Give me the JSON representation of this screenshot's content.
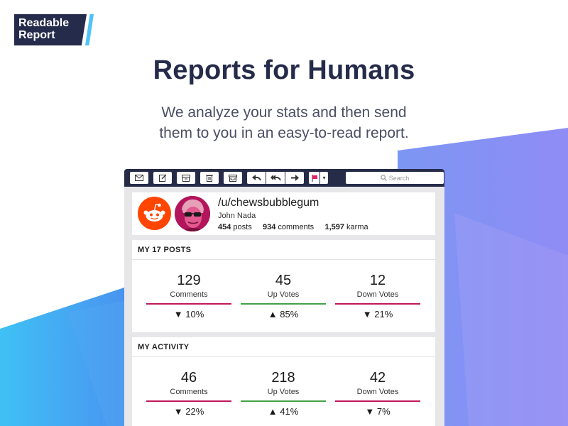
{
  "brand": {
    "line1": "Readable",
    "line2": "Report"
  },
  "hero": {
    "title": "Reports for Humans",
    "subtitle_line1": "We analyze your stats and then send",
    "subtitle_line2": "them to you in an easy-to-read report."
  },
  "toolbar": {
    "search_placeholder": "Search",
    "icons": [
      "envelope-icon",
      "compose-icon",
      "archive-icon",
      "trash-icon",
      "inbox-icon",
      "reply-icon",
      "reply-all-icon",
      "forward-icon",
      "flag-icon",
      "caret-down-icon"
    ]
  },
  "profile": {
    "username": "/u/chewsbubblegum",
    "real_name": "John Nada",
    "posts_count": "454",
    "posts_label": "posts",
    "comments_count": "934",
    "comments_label": "comments",
    "karma_count": "1,597",
    "karma_label": "karma"
  },
  "posts_section": {
    "title": "MY 17 POSTS",
    "metrics": [
      {
        "value": "129",
        "label": "Comments",
        "change": "▼ 10%",
        "color": "#c2185b"
      },
      {
        "value": "45",
        "label": "Up Votes",
        "change": "▲ 85%",
        "color": "#43a047"
      },
      {
        "value": "12",
        "label": "Down Votes",
        "change": "▼ 21%",
        "color": "#c2185b"
      }
    ]
  },
  "activity_section": {
    "title": "MY ACTIVITY",
    "metrics": [
      {
        "value": "46",
        "label": "Comments",
        "change": "▼ 22%",
        "color": "#c2185b"
      },
      {
        "value": "218",
        "label": "Up Votes",
        "change": "▲ 41%",
        "color": "#43a047"
      },
      {
        "value": "42",
        "label": "Down Votes",
        "change": "▼ 7%",
        "color": "#c2185b"
      }
    ]
  },
  "colors": {
    "navy": "#252b4a",
    "accent_blue": "#4fc3f7",
    "reddit_orange": "#ff4500"
  }
}
